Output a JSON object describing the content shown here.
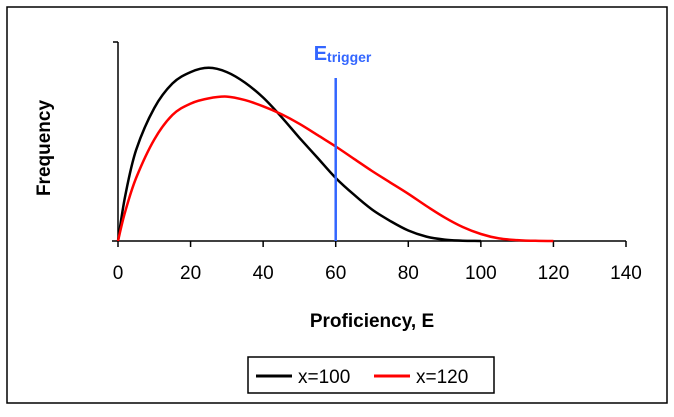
{
  "chart_data": {
    "type": "line",
    "xlabel": "Proficiency, E",
    "ylabel": "Frequency",
    "xlim": [
      0,
      140
    ],
    "xticks": [
      "0",
      "20",
      "40",
      "60",
      "80",
      "100",
      "120",
      "140"
    ],
    "ylim": [
      0,
      1
    ],
    "grid": false,
    "legend_position": "bottom",
    "series": [
      {
        "name": "x=100",
        "color": "#000000",
        "x": [
          0,
          2,
          5,
          10,
          15,
          20,
          25,
          30,
          35,
          40,
          45,
          50,
          55,
          60,
          65,
          70,
          75,
          80,
          85,
          90,
          95,
          100
        ],
        "y": [
          0,
          0.26,
          0.52,
          0.76,
          0.9,
          0.965,
          0.99,
          0.965,
          0.905,
          0.82,
          0.71,
          0.59,
          0.475,
          0.36,
          0.265,
          0.18,
          0.115,
          0.06,
          0.025,
          0.008,
          0.002,
          0
        ]
      },
      {
        "name": "x=120",
        "color": "#ff0000",
        "x": [
          0,
          2,
          5,
          10,
          15,
          20,
          25,
          30,
          35,
          40,
          45,
          50,
          55,
          60,
          65,
          70,
          75,
          80,
          85,
          90,
          95,
          100,
          105,
          110,
          115,
          120
        ],
        "y": [
          0,
          0.17,
          0.36,
          0.58,
          0.72,
          0.785,
          0.815,
          0.825,
          0.805,
          0.77,
          0.725,
          0.67,
          0.605,
          0.54,
          0.47,
          0.4,
          0.335,
          0.27,
          0.2,
          0.135,
          0.08,
          0.04,
          0.015,
          0.005,
          0.001,
          0
        ]
      }
    ],
    "annotations": [
      {
        "label_main": "E",
        "label_sub": "trigger",
        "x": 60,
        "color": "#3366ff"
      }
    ]
  }
}
